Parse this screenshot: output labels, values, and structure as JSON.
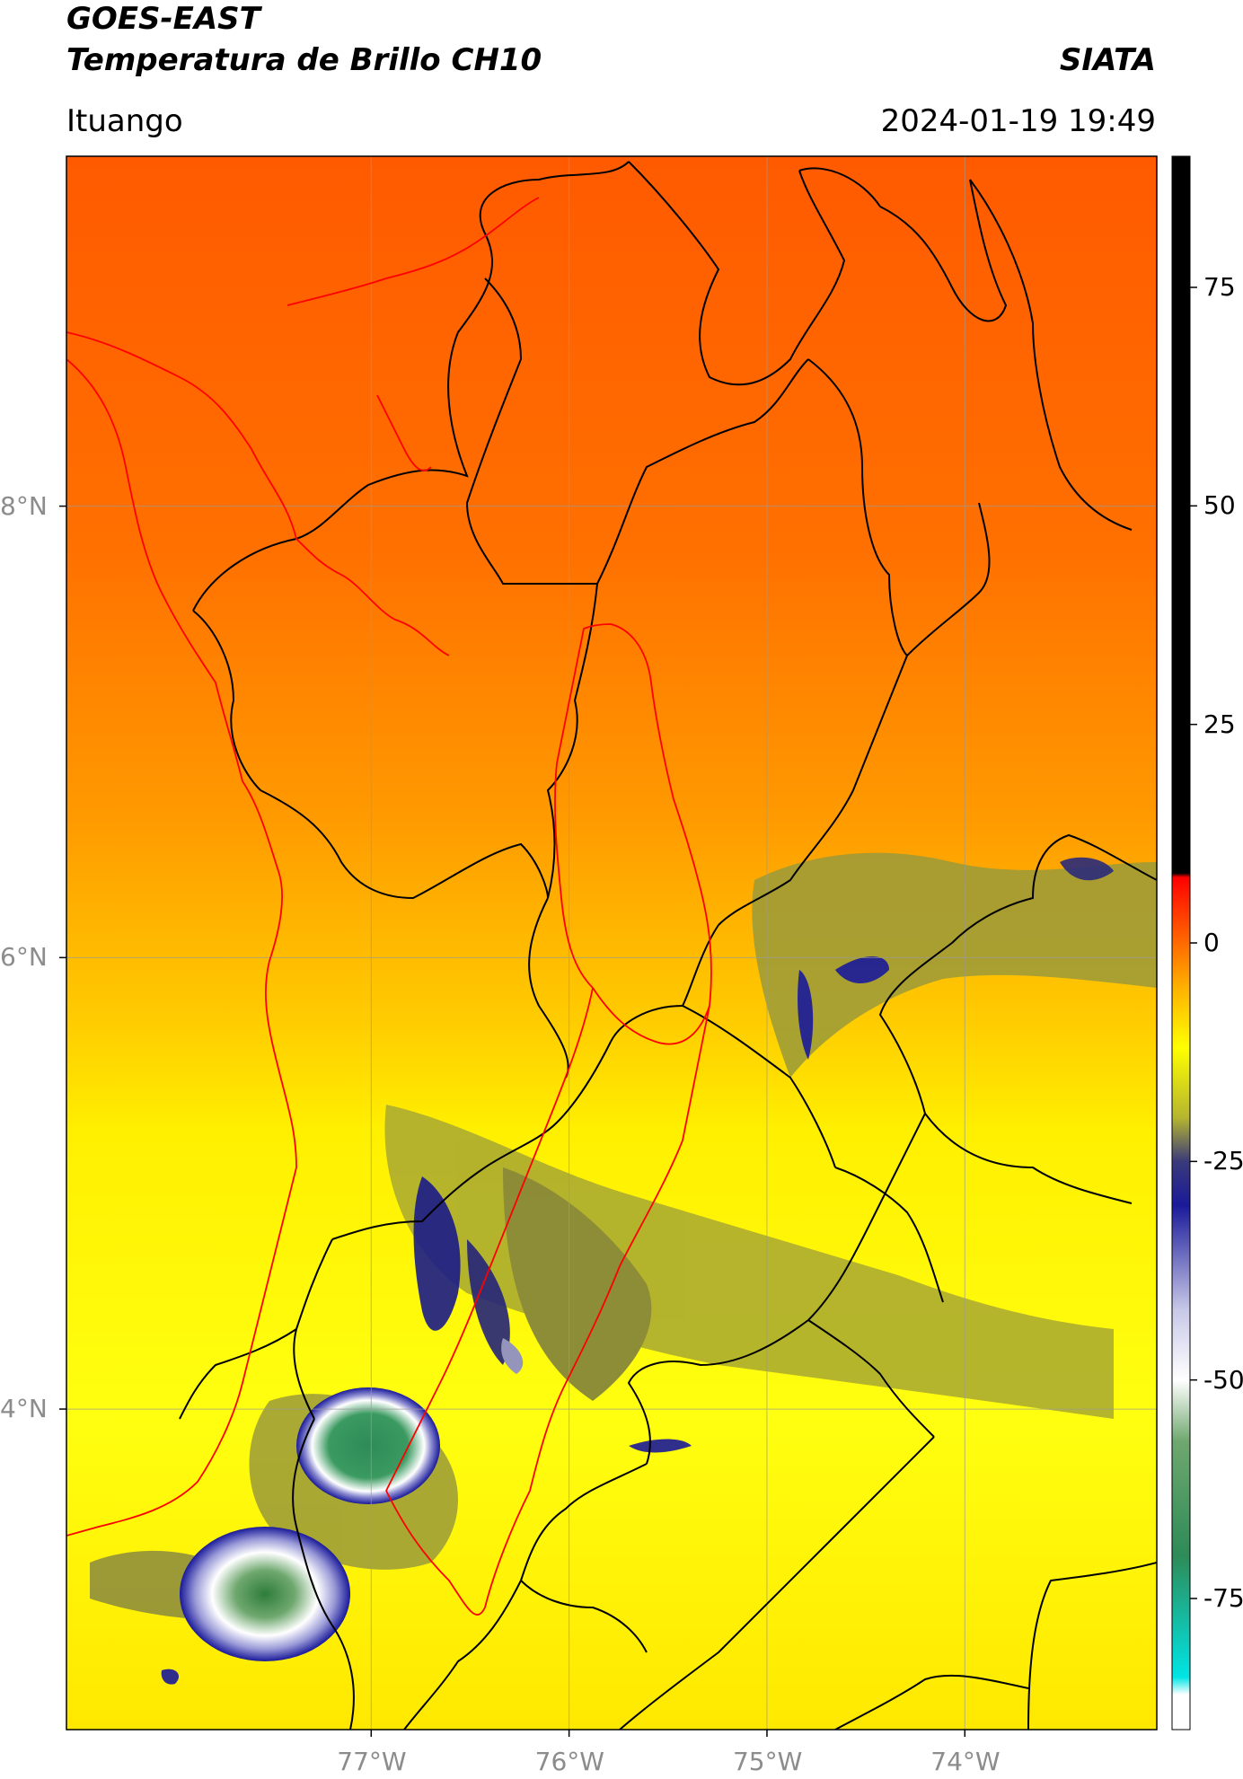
{
  "header": {
    "satellite": "GOES-EAST",
    "product": "Temperatura de Brillo CH10",
    "brand": "SIATA",
    "location": "Ituango",
    "timestamp": "2024-01-19 19:49"
  },
  "map": {
    "lat_ticks": [
      {
        "label": "8°N",
        "value": 8
      },
      {
        "label": "6°N",
        "value": 6
      },
      {
        "label": "4°N",
        "value": 4
      }
    ],
    "lon_ticks": [
      {
        "label": "77°W",
        "value": -77
      },
      {
        "label": "76°W",
        "value": -76
      },
      {
        "label": "75°W",
        "value": -75
      },
      {
        "label": "74°W",
        "value": -74
      }
    ],
    "colors": {
      "border_black": "#000000",
      "border_red": "#ff0000",
      "grid": "#9a9a9a"
    }
  },
  "colorbar": {
    "ticks": [
      {
        "label": "75",
        "value": 75
      },
      {
        "label": "50",
        "value": 50
      },
      {
        "label": "25",
        "value": 25
      },
      {
        "label": "0",
        "value": 0
      },
      {
        "label": "-25",
        "value": -25
      },
      {
        "label": "-50",
        "value": -50
      },
      {
        "label": "-75",
        "value": -75
      }
    ],
    "stops": [
      {
        "value": 90,
        "color": "#000000"
      },
      {
        "value": 8,
        "color": "#000000"
      },
      {
        "value": 7.5,
        "color": "#ff0000"
      },
      {
        "value": 0,
        "color": "#ff6a00"
      },
      {
        "value": -5,
        "color": "#ffb000"
      },
      {
        "value": -12,
        "color": "#ffff00"
      },
      {
        "value": -20,
        "color": "#b5b530"
      },
      {
        "value": -25,
        "color": "#3a3a7a"
      },
      {
        "value": -30,
        "color": "#1a1a9a"
      },
      {
        "value": -42,
        "color": "#c8c8e8"
      },
      {
        "value": -50,
        "color": "#ffffff"
      },
      {
        "value": -57,
        "color": "#6fa86f"
      },
      {
        "value": -70,
        "color": "#2e8b57"
      },
      {
        "value": -84,
        "color": "#00e5e5"
      },
      {
        "value": -86,
        "color": "#ffffff"
      },
      {
        "value": -90,
        "color": "#ffffff"
      }
    ]
  }
}
